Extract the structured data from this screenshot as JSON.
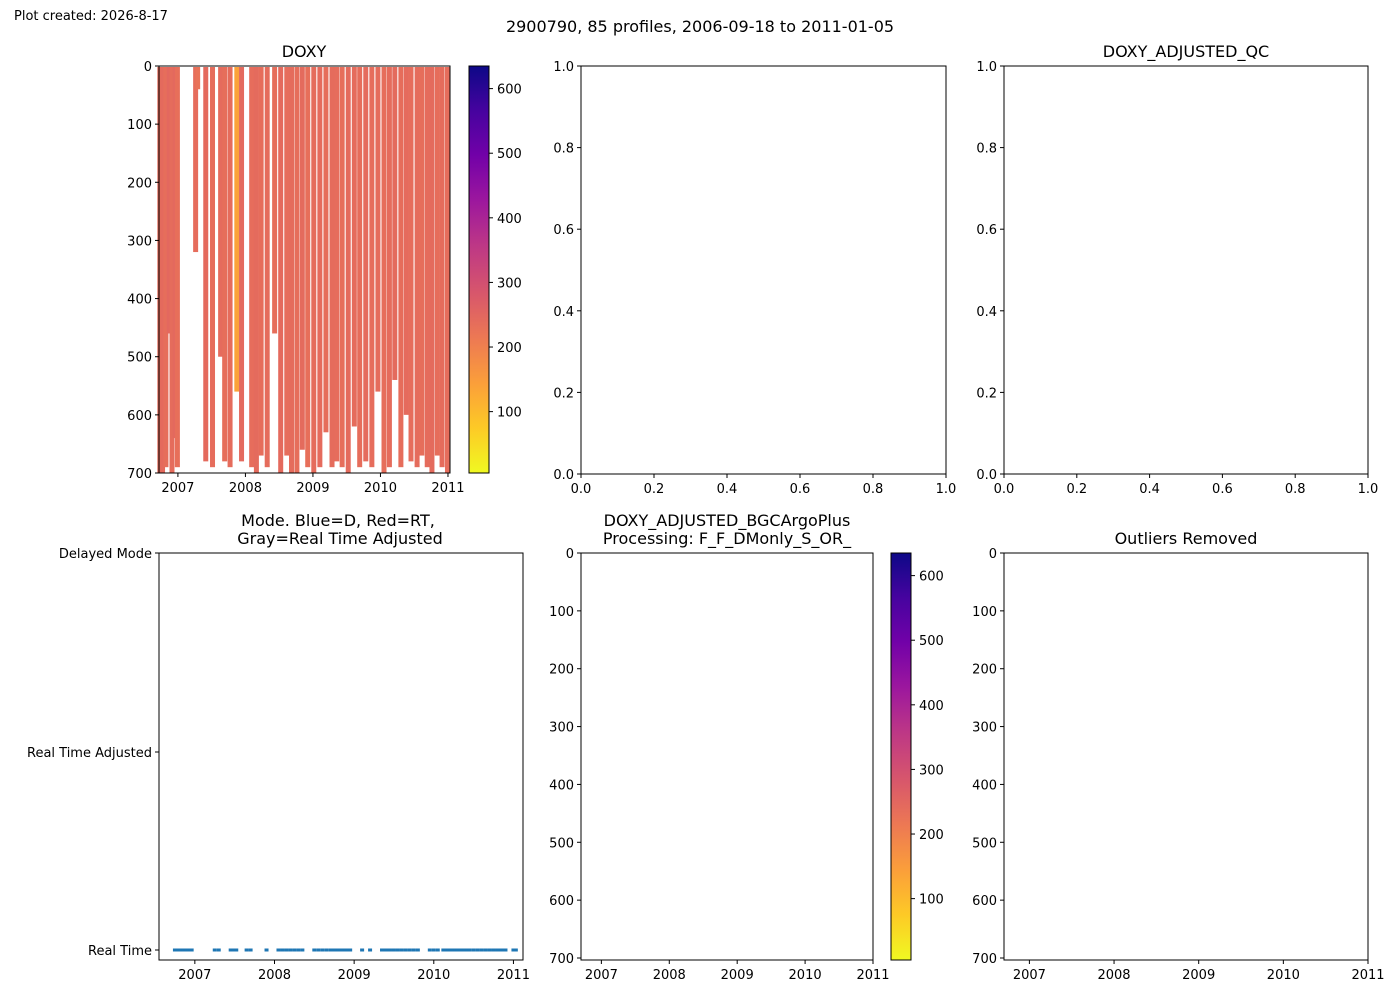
{
  "created": "Plot created: 2026-8-17",
  "suptitle": "2900790, 85 profiles, 2006-09-18 to 2011-01-05",
  "colors": {
    "gradient": [
      "#f0f921",
      "#fdca26",
      "#fb9f3a",
      "#ed7953",
      "#d8576b",
      "#bd3786",
      "#9c179e",
      "#7201a8",
      "#46039f",
      "#0d0887"
    ],
    "mode_points": "#1f77b4"
  },
  "chart_data": [
    {
      "id": "doxy",
      "type": "heatmap",
      "title": "DOXY",
      "x_ticks": [
        "2007",
        "2008",
        "2009",
        "2010",
        "2011"
      ],
      "x_range": [
        2006.72,
        2011.03
      ],
      "y_ticks": [
        "0",
        "100",
        "200",
        "300",
        "400",
        "500",
        "600",
        "700"
      ],
      "y_range": [
        0,
        700
      ],
      "colorbar": {
        "ticks": [
          "100",
          "200",
          "300",
          "400",
          "500",
          "600"
        ],
        "range": [
          5,
          635
        ]
      },
      "profiles": [
        {
          "x": 2006.74,
          "bottom": 700,
          "value": 240
        },
        {
          "x": 2006.78,
          "bottom": 700,
          "value": 245
        },
        {
          "x": 2006.83,
          "bottom": 690,
          "value": 238
        },
        {
          "x": 2006.88,
          "bottom": 460,
          "value": 250
        },
        {
          "x": 2006.92,
          "bottom": 700,
          "value": 242
        },
        {
          "x": 2006.97,
          "bottom": 640,
          "value": 248
        },
        {
          "x": 2007.0,
          "bottom": 690,
          "value": 236
        },
        {
          "x": 2007.27,
          "bottom": 320,
          "value": 240
        },
        {
          "x": 2007.3,
          "bottom": 40,
          "value": 230
        },
        {
          "x": 2007.42,
          "bottom": 680,
          "value": 245
        },
        {
          "x": 2007.52,
          "bottom": 690,
          "value": 240
        },
        {
          "x": 2007.64,
          "bottom": 500,
          "value": 243
        },
        {
          "x": 2007.7,
          "bottom": 680,
          "value": 238
        },
        {
          "x": 2007.78,
          "bottom": 690,
          "value": 241
        },
        {
          "x": 2007.88,
          "bottom": 560,
          "value": 140
        },
        {
          "x": 2007.95,
          "bottom": 680,
          "value": 246
        },
        {
          "x": 2008.1,
          "bottom": 690,
          "value": 240
        },
        {
          "x": 2008.17,
          "bottom": 700,
          "value": 244
        },
        {
          "x": 2008.24,
          "bottom": 670,
          "value": 239
        },
        {
          "x": 2008.33,
          "bottom": 690,
          "value": 242
        },
        {
          "x": 2008.44,
          "bottom": 460,
          "value": 237
        },
        {
          "x": 2008.53,
          "bottom": 700,
          "value": 245
        },
        {
          "x": 2008.62,
          "bottom": 670,
          "value": 240
        },
        {
          "x": 2008.69,
          "bottom": 700,
          "value": 242
        },
        {
          "x": 2008.77,
          "bottom": 700,
          "value": 238
        },
        {
          "x": 2008.85,
          "bottom": 660,
          "value": 244
        },
        {
          "x": 2008.93,
          "bottom": 690,
          "value": 236
        },
        {
          "x": 2009.02,
          "bottom": 700,
          "value": 241
        },
        {
          "x": 2009.11,
          "bottom": 690,
          "value": 243
        },
        {
          "x": 2009.2,
          "bottom": 630,
          "value": 239
        },
        {
          "x": 2009.29,
          "bottom": 690,
          "value": 242
        },
        {
          "x": 2009.36,
          "bottom": 680,
          "value": 240
        },
        {
          "x": 2009.44,
          "bottom": 690,
          "value": 238
        },
        {
          "x": 2009.53,
          "bottom": 700,
          "value": 244
        },
        {
          "x": 2009.62,
          "bottom": 620,
          "value": 241
        },
        {
          "x": 2009.7,
          "bottom": 690,
          "value": 239
        },
        {
          "x": 2009.79,
          "bottom": 680,
          "value": 243
        },
        {
          "x": 2009.88,
          "bottom": 690,
          "value": 240
        },
        {
          "x": 2009.97,
          "bottom": 560,
          "value": 242
        },
        {
          "x": 2010.06,
          "bottom": 700,
          "value": 238
        },
        {
          "x": 2010.14,
          "bottom": 690,
          "value": 241
        },
        {
          "x": 2010.22,
          "bottom": 540,
          "value": 244
        },
        {
          "x": 2010.31,
          "bottom": 690,
          "value": 239
        },
        {
          "x": 2010.39,
          "bottom": 600,
          "value": 243
        },
        {
          "x": 2010.46,
          "bottom": 680,
          "value": 240
        },
        {
          "x": 2010.55,
          "bottom": 690,
          "value": 242
        },
        {
          "x": 2010.62,
          "bottom": 670,
          "value": 238
        },
        {
          "x": 2010.7,
          "bottom": 690,
          "value": 241
        },
        {
          "x": 2010.77,
          "bottom": 700,
          "value": 244
        },
        {
          "x": 2010.85,
          "bottom": 670,
          "value": 239
        },
        {
          "x": 2010.92,
          "bottom": 690,
          "value": 242
        },
        {
          "x": 2011.0,
          "bottom": 700,
          "value": 240
        }
      ]
    },
    {
      "id": "blank1",
      "type": "line",
      "title": "",
      "x_ticks": [
        "0.0",
        "0.2",
        "0.4",
        "0.6",
        "0.8",
        "1.0"
      ],
      "y_ticks": [
        "0.0",
        "0.2",
        "0.4",
        "0.6",
        "0.8",
        "1.0"
      ]
    },
    {
      "id": "adjqc",
      "type": "line",
      "title": "DOXY_ADJUSTED_QC",
      "x_ticks": [
        "0.0",
        "0.2",
        "0.4",
        "0.6",
        "0.8",
        "1.0"
      ],
      "y_ticks": [
        "0.0",
        "0.2",
        "0.4",
        "0.6",
        "0.8",
        "1.0"
      ]
    },
    {
      "id": "mode",
      "type": "scatter",
      "title_lines": [
        "Mode. Blue=D, Red=RT,",
        "Gray=Real Time Adjusted"
      ],
      "x_ticks": [
        "2007",
        "2008",
        "2009",
        "2010",
        "2011"
      ],
      "x_range": [
        2006.55,
        2011.12
      ],
      "y_categories": [
        "Real Time",
        "Real Time Adjusted",
        "Delayed Mode"
      ],
      "points_x": [
        2006.75,
        2006.78,
        2006.8,
        2006.82,
        2006.84,
        2006.86,
        2006.88,
        2006.9,
        2006.92,
        2006.94,
        2006.96,
        2007.25,
        2007.3,
        2007.45,
        2007.48,
        2007.52,
        2007.65,
        2007.7,
        2007.9,
        2008.05,
        2008.1,
        2008.15,
        2008.2,
        2008.25,
        2008.3,
        2008.35,
        2008.5,
        2008.55,
        2008.6,
        2008.65,
        2008.7,
        2008.73,
        2008.76,
        2008.8,
        2008.83,
        2008.86,
        2008.89,
        2008.92,
        2008.95,
        2009.1,
        2009.2,
        2009.35,
        2009.4,
        2009.45,
        2009.5,
        2009.55,
        2009.6,
        2009.65,
        2009.7,
        2009.75,
        2009.8,
        2009.95,
        2010.0,
        2010.05,
        2010.12,
        2010.15,
        2010.18,
        2010.21,
        2010.24,
        2010.27,
        2010.3,
        2010.33,
        2010.36,
        2010.39,
        2010.42,
        2010.45,
        2010.5,
        2010.55,
        2010.6,
        2010.65,
        2010.7,
        2010.75,
        2010.8,
        2010.85,
        2010.9,
        2011.0,
        2011.03
      ],
      "points_y": "Real Time"
    },
    {
      "id": "bgc",
      "type": "heatmap",
      "title_lines": [
        "DOXY_ADJUSTED_BGCArgoPlus",
        "Processing: F_F_DMonly_S_OR_"
      ],
      "x_ticks": [
        "2007",
        "2008",
        "2009",
        "2010",
        "2011"
      ],
      "y_ticks": [
        "0",
        "100",
        "200",
        "300",
        "400",
        "500",
        "600",
        "700"
      ],
      "colorbar": {
        "ticks": [
          "100",
          "200",
          "300",
          "400",
          "500",
          "600"
        ],
        "range": [
          5,
          635
        ]
      }
    },
    {
      "id": "outliers",
      "type": "heatmap",
      "title": "Outliers Removed",
      "x_ticks": [
        "2007",
        "2008",
        "2009",
        "2010",
        "2011"
      ],
      "y_ticks": [
        "0",
        "100",
        "200",
        "300",
        "400",
        "500",
        "600",
        "700"
      ]
    }
  ]
}
